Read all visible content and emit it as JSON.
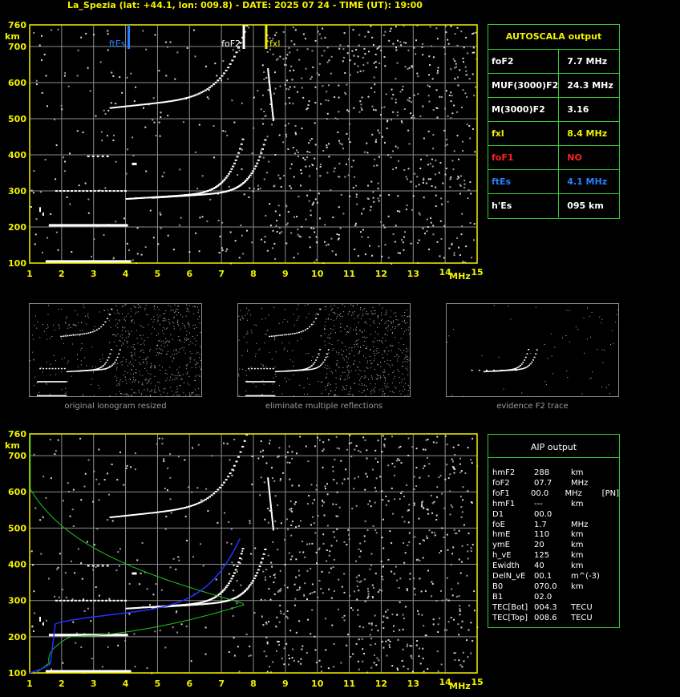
{
  "header": {
    "title": "La_Spezia (lat: +44.1, lon: 009.8) - DATE: 2025 07 24 - TIME (UT): 19:00"
  },
  "colors": {
    "axis": "#f2f200",
    "grid": "#8c8c8c",
    "border": "#36c936",
    "ftEs_marker": "#2a7fff",
    "foF2_marker": "#ffffff",
    "fxl_marker": "#f2f200",
    "profile_green": "#22c422",
    "profile_blue": "#2233ff"
  },
  "chart_data": [
    {
      "type": "scatter",
      "name": "main-ionogram",
      "x_ticks": [
        "1",
        "2",
        "3",
        "4",
        "5",
        "6",
        "7",
        "8",
        "9",
        "10",
        "11",
        "12",
        "13",
        "14",
        "15"
      ],
      "xlabel": "MHz",
      "ylabel": "km",
      "y_ticks": [
        "760",
        "700",
        "600",
        "500",
        "400",
        "300",
        "200",
        "100"
      ],
      "xlim": [
        1,
        15
      ],
      "ylim": [
        100,
        760
      ],
      "markers": [
        {
          "label": "ftEs",
          "x": 4.1,
          "color": "#2a7fff"
        },
        {
          "label": "foF2",
          "x": 7.7,
          "color": "#ffffff"
        },
        {
          "label": "fxl",
          "x": 8.4,
          "color": "#f2f200"
        }
      ]
    },
    {
      "type": "scatter",
      "name": "aip-ionogram",
      "x_ticks": [
        "1",
        "2",
        "3",
        "4",
        "5",
        "6",
        "7",
        "8",
        "9",
        "10",
        "11",
        "12",
        "13",
        "14",
        "15"
      ],
      "xlabel": "MHz",
      "ylabel": "km",
      "y_ticks": [
        "760",
        "700",
        "600",
        "500",
        "400",
        "300",
        "200",
        "100"
      ],
      "xlim": [
        1,
        15
      ],
      "ylim": [
        100,
        760
      ]
    }
  ],
  "thumbnails": [
    {
      "caption": "original ionogram resized"
    },
    {
      "caption": "eliminate multiple reflections"
    },
    {
      "caption": "evidence F2 trace"
    }
  ],
  "autoscala": {
    "title": "AUTOSCALA output",
    "rows": [
      {
        "name": "foF2",
        "value": "7.7 MHz",
        "color": "#ffffff"
      },
      {
        "name": "MUF(3000)F2",
        "value": "24.3 MHz",
        "color": "#ffffff"
      },
      {
        "name": "M(3000)F2",
        "value": "3.16",
        "color": "#ffffff"
      },
      {
        "name": "fxl",
        "value": "8.4 MHz",
        "color": "#f2f200",
        "namecolor": "#f2f200"
      },
      {
        "name": "foF1",
        "value": "NO",
        "color": "#ff2020",
        "namecolor": "#ff2020"
      },
      {
        "name": "ftEs",
        "value": "4.1 MHz",
        "color": "#2a7fff",
        "namecolor": "#2a7fff"
      },
      {
        "name": "h'Es",
        "value": "095     km",
        "color": "#ffffff"
      }
    ]
  },
  "aip": {
    "title": "AIP output",
    "rows": [
      {
        "k": "hmF2",
        "v": "288",
        "u": "km",
        "x": ""
      },
      {
        "k": "foF2",
        "v": "07.7",
        "u": "MHz",
        "x": ""
      },
      {
        "k": "foF1",
        "v": "00.0",
        "u": "MHz",
        "x": "[PN]"
      },
      {
        "k": "hmF1",
        "v": "---",
        "u": "km",
        "x": ""
      },
      {
        "k": "D1",
        "v": "00.0",
        "u": "",
        "x": ""
      },
      {
        "k": "foE",
        "v": "1.7",
        "u": "MHz",
        "x": ""
      },
      {
        "k": "hmE",
        "v": "110",
        "u": "km",
        "x": ""
      },
      {
        "k": "ymE",
        "v": "20",
        "u": "km",
        "x": ""
      },
      {
        "k": "h_vE",
        "v": "125",
        "u": "km",
        "x": ""
      },
      {
        "k": "Ewidth",
        "v": "40",
        "u": "km",
        "x": ""
      },
      {
        "k": "DelN_vE",
        "v": "00.1",
        "u": "m^(-3)",
        "x": ""
      },
      {
        "k": "B0",
        "v": "070.0",
        "u": "km",
        "x": ""
      },
      {
        "k": "B1",
        "v": "02.0",
        "u": "",
        "x": ""
      },
      {
        "k": "TEC[Bot]",
        "v": "004.3",
        "u": "TECU",
        "x": ""
      },
      {
        "k": "TEC[Top]",
        "v": "008.6",
        "u": "TECU",
        "x": ""
      }
    ]
  }
}
